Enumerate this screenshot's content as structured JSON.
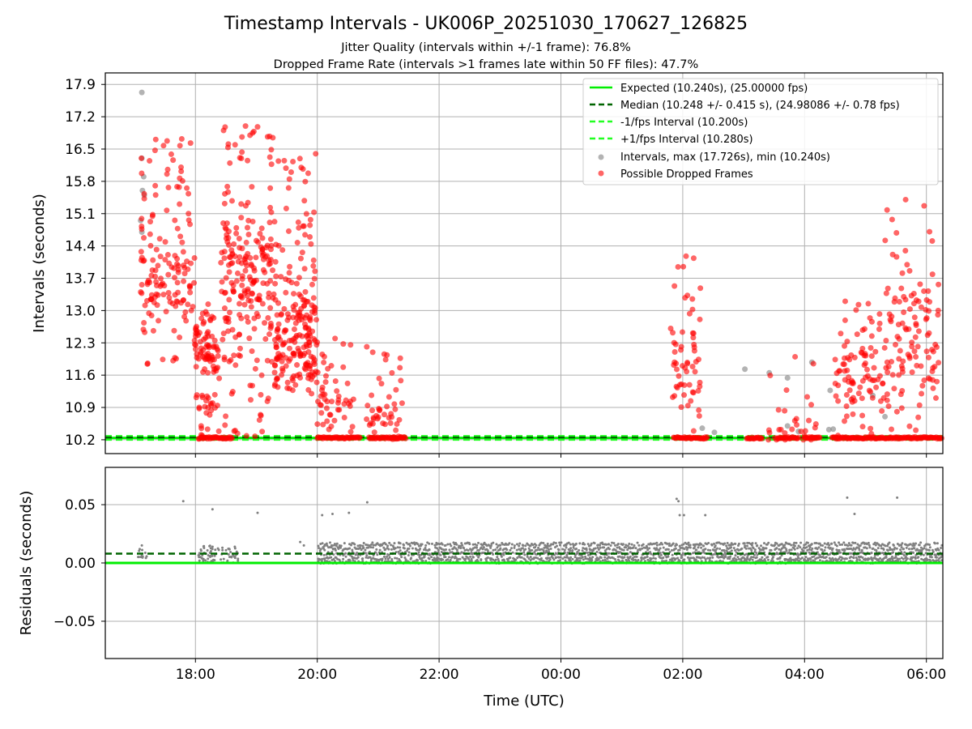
{
  "title": "Timestamp Intervals - UK006P_20251030_170627_126825",
  "subtitle1": "Jitter Quality (intervals within +/-1 frame): 76.8%",
  "subtitle2": "Dropped Frame Rate (intervals >1 frames late within 50 FF files): 47.7%",
  "colors": {
    "expected": "#00ee00",
    "median": "#006400",
    "fps_bounds": "#22ff22",
    "intervals": "#808080",
    "dropped": "#ff0000",
    "grid": "#b0b0b0"
  },
  "chart_data": [
    {
      "type": "scatter",
      "ylabel": "Intervals (seconds)",
      "xlabel": "",
      "x_unit": "hours since 00:00 UTC on the first day",
      "xlim": [
        16.52,
        30.27
      ],
      "ylim": [
        9.9,
        18.15
      ],
      "yticks": [
        "10.2",
        "10.9",
        "11.6",
        "12.3",
        "13.0",
        "13.7",
        "14.4",
        "15.1",
        "15.8",
        "16.5",
        "17.2",
        "17.9"
      ],
      "grid": true,
      "legend_position": "top-right",
      "legend": [
        "Expected (10.240s), (25.00000 fps)",
        "Median (10.248 +/- 0.415 s), (24.98086 +/- 0.78 fps)",
        "-1/fps Interval (10.200s)",
        "+1/fps Interval (10.280s)",
        "Intervals, max (17.726s), min (10.240s)",
        "Possible Dropped Frames"
      ],
      "lines": {
        "expected": 10.24,
        "median": 10.248,
        "minus_one_fps": 10.2,
        "plus_one_fps": 10.28
      },
      "intervals_range": {
        "max": 17.726,
        "min": 10.24
      },
      "dropped_frame_clusters": [
        {
          "x_start": 17.1,
          "x_end": 18.0,
          "y_low": 11.8,
          "y_high": 16.8,
          "y_center": 13.6,
          "count": 150
        },
        {
          "x_start": 18.0,
          "x_end": 18.4,
          "y_low": 10.25,
          "y_high": 13.2,
          "y_center": 12.2,
          "count": 100
        },
        {
          "x_start": 18.4,
          "x_end": 19.3,
          "y_low": 10.25,
          "y_high": 17.0,
          "y_center": 13.8,
          "count": 230
        },
        {
          "x_start": 19.3,
          "x_end": 20.0,
          "y_low": 11.2,
          "y_high": 16.6,
          "y_center": 12.4,
          "count": 220
        },
        {
          "x_start": 20.0,
          "x_end": 20.6,
          "y_low": 10.2,
          "y_high": 12.4,
          "y_center": 10.9,
          "count": 50
        },
        {
          "x_start": 20.8,
          "x_end": 21.4,
          "y_low": 10.2,
          "y_high": 12.3,
          "y_center": 10.7,
          "count": 45
        },
        {
          "x_start": 25.8,
          "x_end": 26.3,
          "y_low": 10.2,
          "y_high": 14.3,
          "y_center": 11.8,
          "count": 60
        },
        {
          "x_start": 27.4,
          "x_end": 28.2,
          "y_low": 10.2,
          "y_high": 12.8,
          "y_center": 10.3,
          "count": 30
        },
        {
          "x_start": 28.5,
          "x_end": 29.3,
          "y_low": 10.2,
          "y_high": 13.4,
          "y_center": 11.6,
          "count": 90
        },
        {
          "x_start": 29.3,
          "x_end": 30.2,
          "y_low": 10.2,
          "y_high": 15.5,
          "y_center": 12.3,
          "count": 120
        }
      ],
      "gray_interval_points": [
        [
          17.12,
          17.726
        ],
        [
          17.12,
          16.3
        ],
        [
          17.15,
          15.9
        ],
        [
          17.13,
          15.6
        ],
        [
          17.16,
          15.5
        ],
        [
          17.1,
          14.95
        ],
        [
          17.12,
          14.7
        ],
        [
          27.02,
          11.73
        ],
        [
          27.42,
          11.65
        ],
        [
          27.72,
          11.54
        ],
        [
          28.12,
          11.88
        ],
        [
          28.42,
          11.27
        ],
        [
          28.47,
          10.43
        ],
        [
          28.4,
          10.42
        ],
        [
          29.12,
          11.16
        ],
        [
          29.32,
          10.7
        ],
        [
          26.32,
          10.45
        ],
        [
          26.52,
          10.36
        ],
        [
          27.72,
          10.5
        ],
        [
          27.9,
          10.38
        ]
      ],
      "dropped_points_near_expected": [
        {
          "x_start": 18.05,
          "x_end": 18.6
        },
        {
          "x_start": 20.0,
          "x_end": 20.7
        },
        {
          "x_start": 20.85,
          "x_end": 21.45
        },
        {
          "x_start": 25.85,
          "x_end": 26.4
        },
        {
          "x_start": 27.05,
          "x_end": 27.3
        },
        {
          "x_start": 27.55,
          "x_end": 27.9
        },
        {
          "x_start": 28.0,
          "x_end": 28.25
        },
        {
          "x_start": 28.45,
          "x_end": 30.25
        }
      ]
    },
    {
      "type": "scatter",
      "ylabel": "Residuals (seconds)",
      "xlabel": "Time (UTC)",
      "xlim": [
        16.52,
        30.27
      ],
      "ylim": [
        -0.082,
        0.082
      ],
      "yticks": [
        "−0.05",
        "0.00",
        "0.05"
      ],
      "xticks": [
        {
          "value": 18,
          "label": "18:00"
        },
        {
          "value": 20,
          "label": "20:00"
        },
        {
          "value": 22,
          "label": "22:00"
        },
        {
          "value": 24,
          "label": "00:00"
        },
        {
          "value": 26,
          "label": "02:00"
        },
        {
          "value": 28,
          "label": "04:00"
        },
        {
          "value": 30,
          "label": "06:00"
        }
      ],
      "grid": true,
      "lines": {
        "expected": 0.0,
        "median": 0.008
      },
      "dense_band": {
        "x_start": 20.0,
        "x_end": 30.25,
        "y_low": 0.0,
        "y_high": 0.018
      },
      "sparse_band": {
        "x_start": 18.05,
        "x_end": 18.7,
        "y_low": 0.0,
        "y_high": 0.015
      },
      "outliers": [
        [
          17.12,
          0.015
        ],
        [
          17.8,
          0.053
        ],
        [
          18.28,
          0.046
        ],
        [
          19.02,
          0.043
        ],
        [
          20.08,
          0.041
        ],
        [
          20.25,
          0.042
        ],
        [
          20.52,
          0.043
        ],
        [
          20.82,
          0.052
        ],
        [
          25.9,
          0.055
        ],
        [
          25.93,
          0.053
        ],
        [
          25.95,
          0.041
        ],
        [
          26.02,
          0.041
        ],
        [
          26.37,
          0.041
        ],
        [
          28.7,
          0.056
        ],
        [
          28.82,
          0.042
        ],
        [
          29.52,
          0.056
        ],
        [
          19.72,
          0.018
        ],
        [
          19.78,
          0.015
        ]
      ]
    }
  ]
}
